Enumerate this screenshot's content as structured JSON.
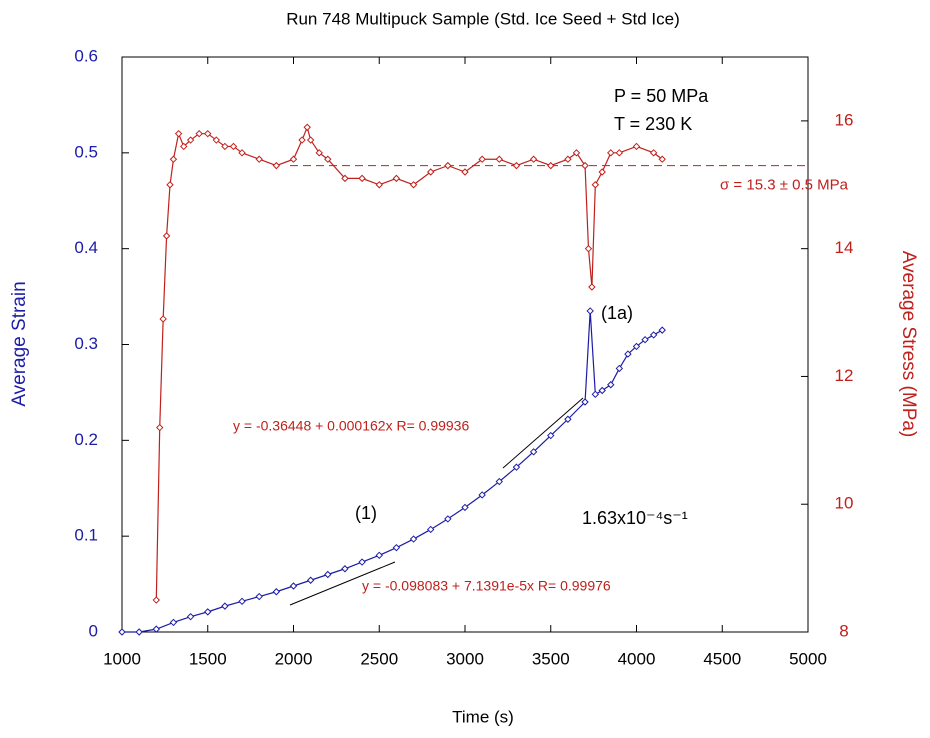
{
  "chart_data": {
    "type": "dual_axis_line",
    "title": "Run 748 Multipuck Sample (Std. Ice Seed + Std Ice)",
    "xlabel": "Time (s)",
    "ylabel": "Average Strain",
    "y2label": "Average Stress (MPa)",
    "xlim": [
      1000,
      5000
    ],
    "xticks": [
      1000,
      1500,
      2000,
      2500,
      3000,
      3500,
      4000,
      4500,
      5000
    ],
    "ylim": [
      0,
      0.6
    ],
    "yticks": [
      0,
      0.1,
      0.2,
      0.3,
      0.4,
      0.5,
      0.6
    ],
    "y2lim": [
      8,
      17
    ],
    "y2ticks": [
      8,
      10,
      12,
      14,
      16
    ],
    "series": [
      {
        "color": "#1c1ca8",
        "axis": "y",
        "x": [
          1000,
          1100,
          1200,
          1300,
          1400,
          1500,
          1600,
          1700,
          1800,
          1900,
          2000,
          2100,
          2200,
          2300,
          2400,
          2500,
          2600,
          2700,
          2800,
          2900,
          3000,
          3100,
          3200,
          3300,
          3400,
          3500,
          3600,
          3700,
          3730,
          3760,
          3800,
          3850,
          3900,
          3950,
          4000,
          4050,
          4100,
          4150
        ],
        "values": [
          0,
          0,
          0.003,
          0.01,
          0.016,
          0.021,
          0.027,
          0.032,
          0.037,
          0.042,
          0.048,
          0.054,
          0.06,
          0.066,
          0.073,
          0.08,
          0.088,
          0.097,
          0.107,
          0.118,
          0.13,
          0.143,
          0.157,
          0.172,
          0.188,
          0.205,
          0.222,
          0.24,
          0.335,
          0.248,
          0.252,
          0.258,
          0.275,
          0.29,
          0.298,
          0.305,
          0.31,
          0.315
        ]
      },
      {
        "color": "#c0201c",
        "axis": "y2",
        "x": [
          1200,
          1220,
          1240,
          1260,
          1280,
          1300,
          1330,
          1360,
          1400,
          1450,
          1500,
          1550,
          1600,
          1650,
          1700,
          1800,
          1900,
          2000,
          2050,
          2080,
          2100,
          2150,
          2200,
          2300,
          2400,
          2500,
          2600,
          2700,
          2800,
          2900,
          3000,
          3100,
          3200,
          3300,
          3400,
          3500,
          3600,
          3650,
          3700,
          3720,
          3740,
          3760,
          3800,
          3850,
          3900,
          4000,
          4100,
          4150
        ],
        "values": [
          8.5,
          11.2,
          12.9,
          14.2,
          15.0,
          15.4,
          15.8,
          15.6,
          15.7,
          15.8,
          15.8,
          15.7,
          15.6,
          15.6,
          15.5,
          15.4,
          15.3,
          15.4,
          15.7,
          15.9,
          15.7,
          15.5,
          15.4,
          15.1,
          15.1,
          15.0,
          15.1,
          15.0,
          15.2,
          15.3,
          15.2,
          15.4,
          15.4,
          15.3,
          15.4,
          15.3,
          15.4,
          15.5,
          15.3,
          14.0,
          13.4,
          15.0,
          15.2,
          15.5,
          15.5,
          15.6,
          15.5,
          15.4
        ]
      }
    ],
    "hline": {
      "value": 15.3,
      "axis": "y2",
      "label": "σ = 15.3 ± 0.5 MPa"
    },
    "annotations": [
      "P = 50 MPa",
      "T = 230 K",
      "(1a)",
      "(1)",
      "y = -0.36448 + 0.000162x   R= 0.99936",
      "y = -0.098083 + 7.1391e-5x   R= 0.99976",
      "1.63x10⁻⁴s⁻¹"
    ]
  }
}
